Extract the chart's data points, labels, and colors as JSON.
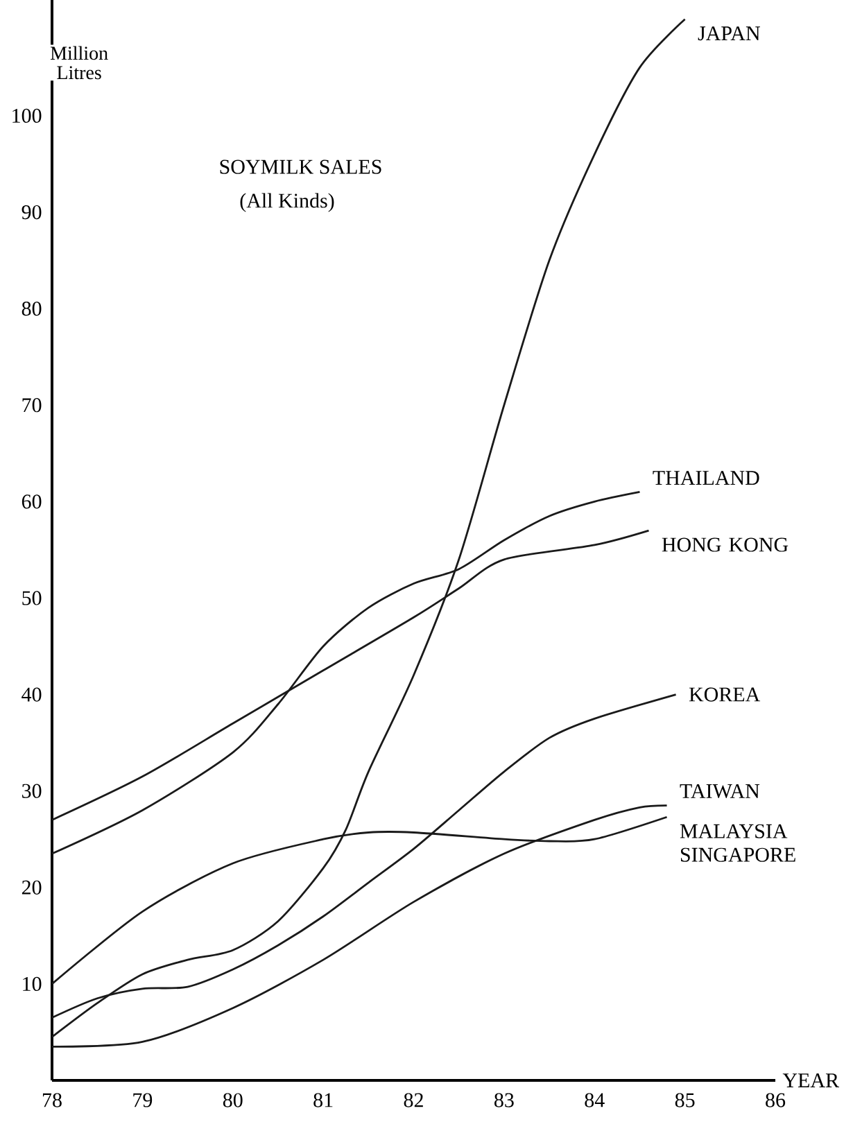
{
  "chart_data": {
    "type": "line",
    "title": "SOYMILK SALES",
    "subtitle": "(All Kinds)",
    "xlabel": "YEAR",
    "ylabel": "Million Litres",
    "xlim": [
      78,
      86
    ],
    "ylim": [
      0,
      112
    ],
    "xticks": [
      78,
      79,
      80,
      81,
      82,
      83,
      84,
      85,
      86
    ],
    "yticks": [
      10,
      20,
      30,
      40,
      50,
      60,
      70,
      80,
      90,
      100
    ],
    "series": [
      {
        "name": "JAPAN",
        "color": "#1a1a1a",
        "x": [
          78,
          78.5,
          79,
          79.5,
          80,
          80.5,
          81,
          81.25,
          81.5,
          82,
          82.5,
          83,
          83.5,
          84,
          84.5,
          85
        ],
        "values": [
          4.5,
          8,
          11,
          12.5,
          13.5,
          16.5,
          22,
          26,
          32,
          42,
          54,
          70,
          85,
          96,
          105,
          110
        ]
      },
      {
        "name": "THAILAND",
        "color": "#1a1a1a",
        "x": [
          78,
          79,
          80,
          80.5,
          81,
          81.5,
          82,
          82.5,
          83,
          83.5,
          84,
          84.5
        ],
        "values": [
          23.5,
          28,
          34,
          39,
          45,
          49,
          51.5,
          53,
          56,
          58.5,
          60,
          61
        ]
      },
      {
        "name": "HONG KONG",
        "color": "#1a1a1a",
        "x": [
          78,
          79,
          80,
          81,
          82,
          82.5,
          83,
          84,
          84.6
        ],
        "values": [
          27,
          31.5,
          37,
          42.5,
          48,
          51,
          54,
          55.5,
          57
        ]
      },
      {
        "name": "KOREA",
        "color": "#1a1a1a",
        "x": [
          78,
          78.5,
          79,
          79.5,
          80,
          80.5,
          81,
          81.5,
          82,
          82.5,
          83,
          83.5,
          84,
          84.9
        ],
        "values": [
          6.5,
          8.5,
          9.5,
          9.7,
          11.5,
          14,
          17,
          20.5,
          24,
          28,
          32,
          35.5,
          37.5,
          40
        ]
      },
      {
        "name": "TAIWAN",
        "color": "#1a1a1a",
        "x": [
          78,
          79,
          80,
          81,
          82,
          83,
          84,
          84.5,
          84.8
        ],
        "values": [
          3.5,
          4,
          7.5,
          12.5,
          18.5,
          23.5,
          27,
          28.3,
          28.5
        ]
      },
      {
        "name": "MALAYSIA SINGAPORE",
        "color": "#1a1a1a",
        "x": [
          78,
          79,
          80,
          81,
          81.5,
          82,
          83,
          83.5,
          84,
          84.8
        ],
        "values": [
          10,
          17.5,
          22.5,
          25,
          25.7,
          25.7,
          25,
          24.8,
          25,
          27.3
        ]
      }
    ]
  }
}
